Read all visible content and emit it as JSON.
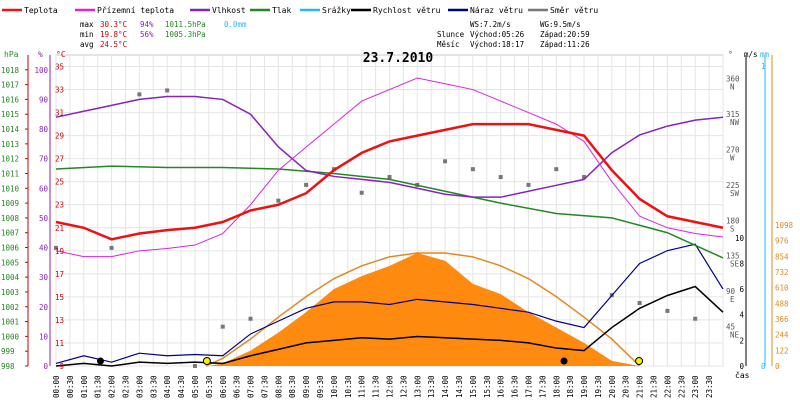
{
  "chart_data": {
    "type": "line",
    "title": "23.7.2010",
    "legend": [
      {
        "name": "Teplota",
        "color": "#ee1111"
      },
      {
        "name": "Přízemní teplota",
        "color": "#dd22dd"
      },
      {
        "name": "Vlhkost",
        "color": "#8822bb"
      },
      {
        "name": "Tlak",
        "color": "#228822"
      },
      {
        "name": "Srážky",
        "color": "#22bbee"
      },
      {
        "name": "Rychlost větru",
        "color": "#000000"
      },
      {
        "name": "Náraz větru",
        "color": "#000088"
      },
      {
        "name": "Směr větru",
        "color": "#777777"
      }
    ],
    "stats": {
      "max": {
        "label": "max",
        "temp": "30.3°C",
        "hum": "94%",
        "press": "1011.5hPa",
        "rain": "0.0mm"
      },
      "min": {
        "label": "min",
        "temp": "19.8°C",
        "hum": "56%",
        "press": "1005.3hPa"
      },
      "avg": {
        "label": "avg",
        "temp": "24.5°C"
      }
    },
    "wind_info": {
      "ws": "WS:7.2m/s",
      "wg": "WG:9.5m/s"
    },
    "sun": {
      "label": "Slunce",
      "rise": "Východ:05:26",
      "set": "Západ:20:59"
    },
    "moon": {
      "label": "Měsíc",
      "rise": "Východ:18:17",
      "set": "Západ:11:26"
    },
    "axis_units": {
      "hpa": "hPa",
      "pct": "%",
      "degc": "°C",
      "deg": "°",
      "ms": "m/s",
      "mm": "mm",
      "time": "čas"
    },
    "x_ticks": [
      "00:00",
      "00:30",
      "01:00",
      "01:30",
      "02:00",
      "02:30",
      "03:00",
      "03:30",
      "04:00",
      "04:30",
      "05:00",
      "05:30",
      "06:00",
      "06:30",
      "07:00",
      "07:30",
      "08:00",
      "08:30",
      "09:00",
      "09:30",
      "10:00",
      "10:30",
      "11:00",
      "11:30",
      "12:00",
      "12:30",
      "13:00",
      "13:30",
      "14:00",
      "14:30",
      "15:00",
      "15:30",
      "16:00",
      "16:30",
      "17:00",
      "17:30",
      "18:00",
      "18:30",
      "19:00",
      "19:30",
      "20:00",
      "20:30",
      "21:00",
      "21:30",
      "22:00",
      "22:30",
      "23:00",
      "23:30"
    ],
    "axis_hpa": [
      "998",
      "999",
      "1000",
      "1001",
      "1002",
      "1003",
      "1004",
      "1005",
      "1006",
      "1007",
      "1008",
      "1009",
      "1010",
      "1011",
      "1012",
      "1013",
      "1014",
      "1015",
      "1016",
      "1017",
      "1018"
    ],
    "axis_pct": [
      "0",
      "10",
      "20",
      "30",
      "40",
      "50",
      "60",
      "70",
      "80",
      "90",
      "100"
    ],
    "axis_temp": [
      "9",
      "11",
      "13",
      "15",
      "17",
      "19",
      "21",
      "23",
      "25",
      "27",
      "29",
      "31",
      "33",
      "35"
    ],
    "axis_dir": [
      "360 N",
      "315 NW",
      "270 W",
      "225 SW",
      "180 S",
      "135 SE",
      "90 E",
      "45 NE"
    ],
    "axis_ms": [
      "0",
      "2",
      "4",
      "6",
      "8",
      "10"
    ],
    "axis_mm": [
      "0",
      "1"
    ],
    "axis_rad": [
      "0",
      "122",
      "244",
      "366",
      "488",
      "610",
      "732",
      "854",
      "976",
      "1098"
    ],
    "series": {
      "temperature": {
        "x": [
          0,
          1,
          2,
          3,
          4,
          5,
          6,
          7,
          8,
          9,
          10,
          11,
          12,
          13,
          14,
          15,
          16,
          17,
          18,
          19,
          20,
          21,
          22,
          23,
          24
        ],
        "y": [
          21.5,
          21,
          20,
          20.5,
          20.8,
          21,
          21.5,
          22.5,
          23,
          24,
          26,
          27.5,
          28.5,
          29,
          29.5,
          30,
          30,
          30,
          29.5,
          29,
          26,
          23.5,
          22,
          21.5,
          21
        ]
      },
      "ground_temperature": {
        "x": [
          0,
          1,
          2,
          3,
          4,
          5,
          6,
          7,
          8,
          9,
          10,
          11,
          12,
          13,
          14,
          15,
          16,
          17,
          18,
          19,
          20,
          21,
          22,
          23,
          24
        ],
        "y": [
          19,
          18.5,
          18.5,
          19,
          19.2,
          19.5,
          20.5,
          23,
          26,
          28,
          30,
          32,
          33,
          34,
          33.5,
          33,
          32,
          31,
          30,
          28.5,
          25,
          22,
          21,
          20.5,
          20.2
        ]
      },
      "humidity": {
        "x": [
          0,
          1,
          2,
          3,
          4,
          5,
          6,
          7,
          8,
          9,
          10,
          11,
          12,
          13,
          14,
          15,
          16,
          17,
          18,
          19,
          20,
          21,
          22,
          23,
          24
        ],
        "y": [
          84,
          86,
          88,
          90,
          91,
          91,
          90,
          85,
          74,
          66,
          64,
          63,
          62,
          60,
          58,
          57,
          57,
          59,
          61,
          63,
          72,
          78,
          81,
          83,
          84
        ]
      },
      "pressure": {
        "x": [
          0,
          2,
          4,
          6,
          8,
          10,
          12,
          14,
          16,
          18,
          20,
          22,
          24
        ],
        "y": [
          1011.3,
          1011.5,
          1011.4,
          1011.4,
          1011.3,
          1011,
          1010.6,
          1009.8,
          1009,
          1008.3,
          1008,
          1007,
          1005.3
        ]
      },
      "wind_speed": {
        "x": [
          0,
          1,
          2,
          3,
          4,
          5,
          6,
          7,
          8,
          9,
          10,
          11,
          12,
          13,
          14,
          15,
          16,
          17,
          18,
          19,
          20,
          21,
          22,
          23,
          24
        ],
        "y": [
          0,
          0.2,
          0,
          0.3,
          0.2,
          0.3,
          0.2,
          0.8,
          1.3,
          1.8,
          2,
          2.2,
          2.1,
          2.3,
          2.2,
          2.1,
          2,
          1.8,
          1.4,
          1.2,
          3,
          4.5,
          5.5,
          6.2,
          4.2
        ]
      },
      "wind_gust": {
        "x": [
          0,
          1,
          2,
          3,
          4,
          5,
          6,
          7,
          8,
          9,
          10,
          11,
          12,
          13,
          14,
          15,
          16,
          17,
          18,
          19,
          20,
          21,
          22,
          23,
          24
        ],
        "y": [
          0.2,
          0.8,
          0.3,
          1,
          0.8,
          0.9,
          0.8,
          2.5,
          3.5,
          4.5,
          5,
          5,
          4.8,
          5.2,
          5,
          4.8,
          4.5,
          4.2,
          3.5,
          3,
          5.5,
          8,
          9,
          9.5,
          6
        ]
      },
      "solar_radiation": {
        "x": [
          0,
          5.5,
          6,
          7,
          8,
          9,
          10,
          11,
          12,
          13,
          14,
          15,
          16,
          17,
          18,
          19,
          20,
          21,
          24
        ],
        "y": [
          0,
          0,
          20,
          120,
          260,
          420,
          600,
          700,
          780,
          880,
          820,
          640,
          560,
          420,
          300,
          180,
          40,
          0,
          0
        ]
      },
      "theoretical_radiation": {
        "x": [
          5.4,
          6,
          7,
          8,
          9,
          10,
          11,
          12,
          13,
          14,
          15,
          16,
          17,
          18,
          19,
          20,
          21
        ],
        "y": [
          0,
          60,
          210,
          380,
          540,
          680,
          780,
          850,
          880,
          880,
          850,
          780,
          680,
          540,
          380,
          210,
          0
        ]
      },
      "wind_direction": {
        "x": [
          0,
          2,
          3,
          4,
          5,
          6,
          7,
          8,
          9,
          10,
          11,
          12,
          13,
          14,
          15,
          16,
          17,
          18,
          19,
          20,
          21,
          22,
          23
        ],
        "y": [
          150,
          150,
          345,
          350,
          0,
          50,
          60,
          210,
          230,
          250,
          220,
          240,
          230,
          260,
          250,
          240,
          230,
          250,
          240,
          90,
          80,
          70,
          60
        ]
      }
    },
    "ylabel": "",
    "xlabel": "čas"
  }
}
